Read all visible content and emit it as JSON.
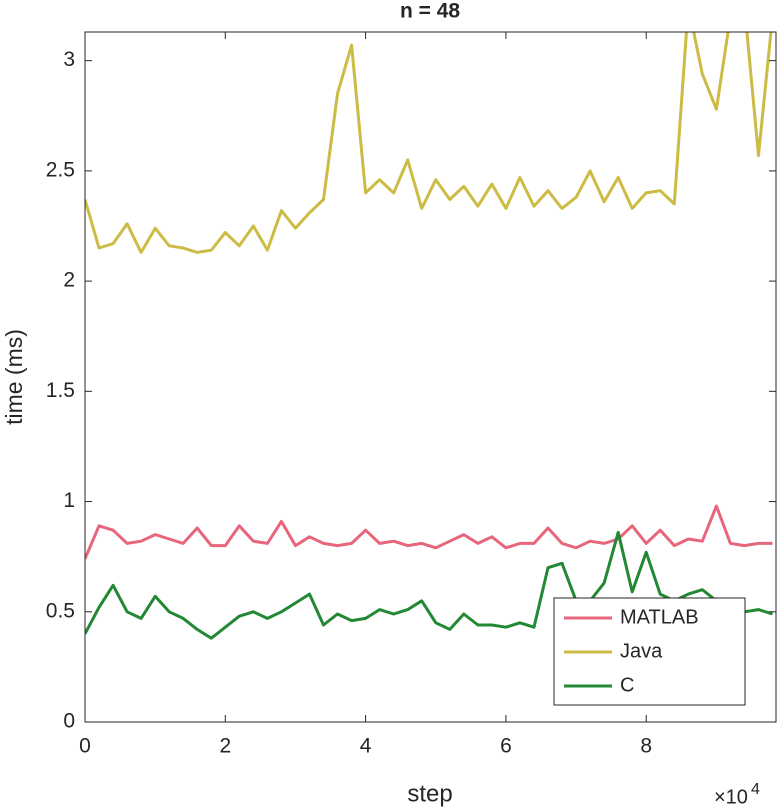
{
  "chart_data": {
    "type": "line",
    "title": "n = 48",
    "xlabel": "step",
    "ylabel": "time (ms)",
    "x_exponent_base": "×10",
    "x_exponent": "4",
    "x": [
      0,
      0.2,
      0.4,
      0.6,
      0.8,
      1.0,
      1.2,
      1.4,
      1.6,
      1.8,
      2.0,
      2.2,
      2.4,
      2.6,
      2.8,
      3.0,
      3.2,
      3.4,
      3.6,
      3.8,
      4.0,
      4.2,
      4.4,
      4.6,
      4.8,
      5.0,
      5.2,
      5.4,
      5.6,
      5.8,
      6.0,
      6.2,
      6.4,
      6.6,
      6.8,
      7.0,
      7.2,
      7.4,
      7.6,
      7.8,
      8.0,
      8.2,
      8.4,
      8.6,
      8.8,
      9.0,
      9.2,
      9.4,
      9.6,
      9.8
    ],
    "series": [
      {
        "name": "MATLAB",
        "color": "#e8667c",
        "values": [
          0.74,
          0.89,
          0.87,
          0.81,
          0.82,
          0.85,
          0.83,
          0.81,
          0.88,
          0.8,
          0.8,
          0.89,
          0.82,
          0.81,
          0.91,
          0.8,
          0.84,
          0.81,
          0.8,
          0.81,
          0.87,
          0.81,
          0.82,
          0.8,
          0.81,
          0.79,
          0.82,
          0.85,
          0.81,
          0.84,
          0.79,
          0.81,
          0.81,
          0.88,
          0.81,
          0.79,
          0.82,
          0.81,
          0.83,
          0.89,
          0.81,
          0.87,
          0.8,
          0.83,
          0.82,
          0.98,
          0.81,
          0.8,
          0.81,
          0.81
        ]
      },
      {
        "name": "Java",
        "color": "#ccbb44",
        "values": [
          2.37,
          2.15,
          2.17,
          2.26,
          2.13,
          2.24,
          2.16,
          2.15,
          2.13,
          2.14,
          2.22,
          2.16,
          2.25,
          2.14,
          2.32,
          2.24,
          2.31,
          2.37,
          2.85,
          3.07,
          2.4,
          2.46,
          2.4,
          2.55,
          2.33,
          2.46,
          2.37,
          2.43,
          2.34,
          2.44,
          2.33,
          2.47,
          2.34,
          2.41,
          2.33,
          2.38,
          2.5,
          2.36,
          2.47,
          2.33,
          2.4,
          2.41,
          2.35,
          3.25,
          2.94,
          2.78,
          3.2,
          3.25,
          2.57,
          3.2
        ]
      },
      {
        "name": "C",
        "color": "#228833",
        "values": [
          0.4,
          0.52,
          0.62,
          0.5,
          0.47,
          0.57,
          0.5,
          0.47,
          0.42,
          0.38,
          0.43,
          0.48,
          0.5,
          0.47,
          0.5,
          0.54,
          0.58,
          0.44,
          0.49,
          0.46,
          0.47,
          0.51,
          0.49,
          0.51,
          0.55,
          0.45,
          0.42,
          0.49,
          0.44,
          0.44,
          0.43,
          0.45,
          0.43,
          0.7,
          0.72,
          0.55,
          0.55,
          0.63,
          0.86,
          0.59,
          0.77,
          0.58,
          0.55,
          0.58,
          0.6,
          0.55,
          0.55,
          0.5,
          0.51,
          0.49
        ]
      }
    ],
    "xlim": [
      0,
      9.85
    ],
    "ylim": [
      0,
      3.13
    ],
    "xticks": [
      0,
      2,
      4,
      6,
      8
    ],
    "yticks": [
      0,
      0.5,
      1,
      1.5,
      2,
      2.5,
      3
    ],
    "grid": false,
    "legend": "southeast"
  }
}
